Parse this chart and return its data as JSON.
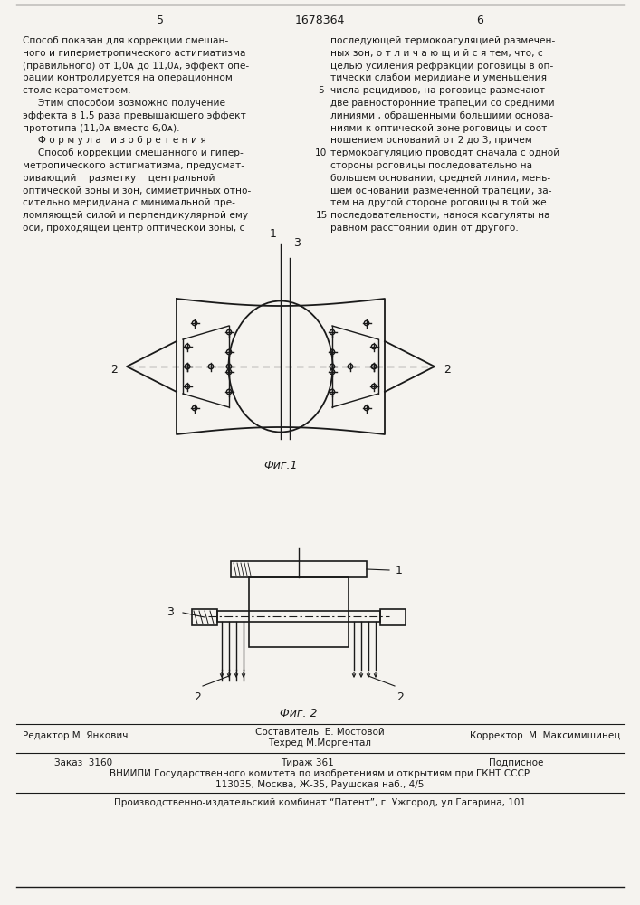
{
  "page_number_left": "5",
  "page_number_center": "1678364",
  "page_number_right": "6",
  "bg_color": "#f5f3ef",
  "text_color": "#1a1a1a",
  "left_column_text": [
    "Способ показан для коррекции смешан-",
    "ного и гиперметропического астигматизма",
    "(правильного) от 1,0ᴀ до 11,0ᴀ, эффект опе-",
    "рации контролируется на операционном",
    "столе кератометром.",
    "     Этим способом возможно получение",
    "эффекта в 1,5 раза превышающего эффект",
    "прототипа (11,0ᴀ вместо 6,0ᴀ).",
    "     Ф о р м у л а   и з о б р е т е н и я",
    "     Способ коррекции смешанного и гипер-",
    "метропического астигматизма, предусмат-",
    "ривающий    разметку    центральной",
    "оптической зоны и зон, симметричных отно-",
    "сительно меридиана с минимальной пре-",
    "ломляющей силой и перпендикулярной ему",
    "оси, проходящей центр оптической зоны, с"
  ],
  "right_column_text": [
    "последующей термокоагуляцией размечен-",
    "ных зон, о т л и ч а ю щ и й с я тем, что, с",
    "целью усиления рефракции роговицы в оп-",
    "тически слабом меридиане и уменьшения",
    "числа рецидивов, на роговице размечают",
    "две равносторонние трапеции со средними",
    "линиями , обращенными большими основа-",
    "ниями к оптической зоне роговицы и соот-",
    "ношением оснований от 2 до 3, причем",
    "термокоагуляцию проводят сначала с одной",
    "стороны роговицы последовательно на",
    "большем основании, средней линии, мень-",
    "шем основании размеченной трапеции, за-",
    "тем на другой стороне роговицы в той же",
    "последовательности, нанося коагуляты на",
    "равном расстоянии один от другого."
  ],
  "fig1_caption": "Фиг.1",
  "fig2_caption": "Фиг. 2",
  "footer_editor": "Редактор М. Янкович",
  "footer_composer": "Составитель  Е. Мостовой",
  "footer_tech": "Техред М.Моргентал",
  "footer_corrector": "Корректор  М. Максимишинец",
  "footer_order": "Заказ  3160",
  "footer_circulation": "Тираж 361",
  "footer_subscription": "Подписное",
  "footer_vniipи": "ВНИИПИ Государственного комитета по изобретениям и открытиям при ГКНТ СССР",
  "footer_address": "113035, Москва, Ж-35, Раушская наб., 4/5",
  "footer_production": "Производственно-издательский комбинат “Патент”, г. Ужгород, ул.Гагарина, 101"
}
